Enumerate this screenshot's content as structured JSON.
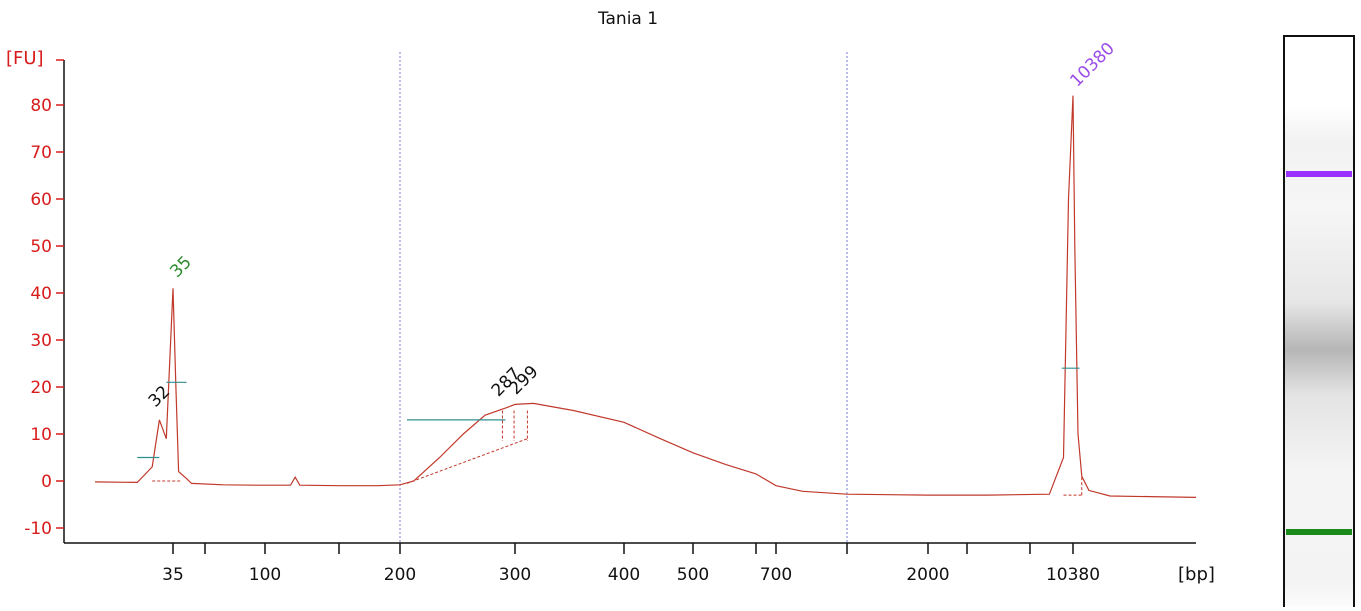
{
  "chart_data": {
    "type": "line",
    "title": "Tania 1",
    "yunit": "[FU]",
    "xunit": "[bp]",
    "ylim": [
      -13,
      90
    ],
    "yticks": [
      80,
      70,
      60,
      50,
      40,
      30,
      20,
      10,
      0,
      -10
    ],
    "xticks_labeled": [
      "35",
      "100",
      "200",
      "300",
      "400",
      "500",
      "700",
      "2000",
      "10380"
    ],
    "peak_labels": [
      {
        "label": "35",
        "color": "#2e8b2e",
        "role": "lower marker"
      },
      {
        "label": "32",
        "color": "#111111"
      },
      {
        "label": "287",
        "color": "#111111"
      },
      {
        "label": "299",
        "color": "#111111"
      },
      {
        "label": "10380",
        "color": "#9b4de8",
        "role": "upper marker"
      }
    ],
    "series": [
      {
        "color": "#c0392b",
        "points": [
          [
            "25",
            -0.2
          ],
          [
            "30",
            -0.3
          ],
          [
            "32",
            3
          ],
          [
            "33",
            13
          ],
          [
            "34",
            9
          ],
          [
            "35",
            41
          ],
          [
            "36",
            20
          ],
          [
            "37",
            2
          ],
          [
            "40",
            0.5
          ],
          [
            "42",
            -0.5
          ],
          [
            "60",
            -0.8
          ],
          [
            "90",
            -0.9
          ],
          [
            "115",
            -0.9
          ],
          [
            "118",
            0.8
          ],
          [
            "121",
            -0.9
          ],
          [
            "150",
            -1.0
          ],
          [
            "180",
            -1.0
          ],
          [
            "200",
            -0.8
          ],
          [
            "210",
            0
          ],
          [
            "230",
            5
          ],
          [
            "250",
            10
          ],
          [
            "270",
            14
          ],
          [
            "290",
            15.5
          ],
          [
            "300",
            16.3
          ],
          [
            "315",
            16.5
          ],
          [
            "350",
            15
          ],
          [
            "400",
            12.5
          ],
          [
            "450",
            9
          ],
          [
            "500",
            6
          ],
          [
            "550",
            3.5
          ],
          [
            "600",
            1.5
          ],
          [
            "700",
            -1
          ],
          [
            "800",
            -2.2
          ],
          [
            "1000",
            -2.8
          ],
          [
            "2000",
            -3.0
          ],
          [
            "5000",
            -3.0
          ],
          [
            "9000",
            -2.8
          ],
          [
            "9800",
            5
          ],
          [
            "10100",
            60
          ],
          [
            "10380",
            82
          ],
          [
            "10600",
            50
          ],
          [
            "11000",
            10
          ],
          [
            "11500",
            1
          ],
          [
            "12500",
            -2
          ],
          [
            "16000",
            -3.2
          ],
          [
            "30000",
            -3.5
          ]
        ]
      }
    ],
    "gel_lane": {
      "bands": [
        {
          "marker": "10380",
          "color": "#9b30ff"
        },
        {
          "marker": "35",
          "color": "#1a8a1a"
        }
      ]
    },
    "grid": false,
    "legend": "none"
  }
}
